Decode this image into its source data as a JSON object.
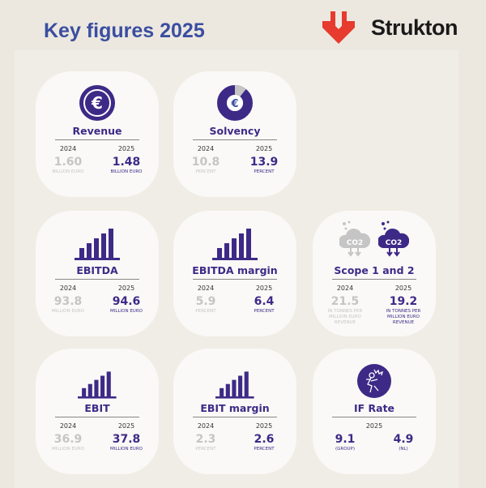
{
  "title": "Key figures 2025",
  "brand": {
    "name": "Strukton",
    "logo_color": "#e63b2e"
  },
  "colors": {
    "accent": "#3d2a87",
    "muted": "#c5c5c5",
    "heading": "#3a4ea0"
  },
  "cards": [
    {
      "icon": "euro-icon",
      "title": "Revenue",
      "y1": "2024",
      "y2": "2025",
      "v1": "1.60",
      "v2": "1.48",
      "u1": "BILLION EURO",
      "u2": "BILLION EURO"
    },
    {
      "icon": "solvency-donut-icon",
      "title": "Solvency",
      "y1": "2024",
      "y2": "2025",
      "v1": "10.8",
      "v2": "13.9",
      "u1": "PERCENT",
      "u2": "PERCENT"
    },
    {
      "icon": "bar-chart-icon",
      "title": "EBITDA",
      "y1": "2024",
      "y2": "2025",
      "v1": "93.8",
      "v2": "94.6",
      "u1": "MILLION EURO",
      "u2": "MILLION EURO"
    },
    {
      "icon": "bar-chart-icon",
      "title": "EBITDA margin",
      "y1": "2024",
      "y2": "2025",
      "v1": "5.9",
      "v2": "6.4",
      "u1": "PERCENT",
      "u2": "PERCENT"
    },
    {
      "icon": "co2-cloud-icon",
      "title": "Scope 1 and 2",
      "y1": "2024",
      "y2": "2025",
      "v1": "21.5",
      "v2": "19.2",
      "u1": "IN TONNES PER MILLION EURO REVENUE",
      "u2": "IN TONNES PER MILLION EURO REVENUE",
      "co2": "CO2"
    },
    {
      "icon": "bar-chart-icon",
      "title": "EBIT",
      "y1": "2024",
      "y2": "2025",
      "v1": "36.9",
      "v2": "37.8",
      "u1": "MILLION EURO",
      "u2": "MILLION EURO"
    },
    {
      "icon": "bar-chart-icon",
      "title": "EBIT margin",
      "y1": "2024",
      "y2": "2025",
      "v1": "2.3",
      "v2": "2.6",
      "u1": "PERCENT",
      "u2": "PERCENT"
    },
    {
      "icon": "injury-icon",
      "title": "IF Rate",
      "year": "2025",
      "v1": "9.1",
      "v2": "4.9",
      "u1": "(GROUP)",
      "u2": "(NL)"
    }
  ]
}
